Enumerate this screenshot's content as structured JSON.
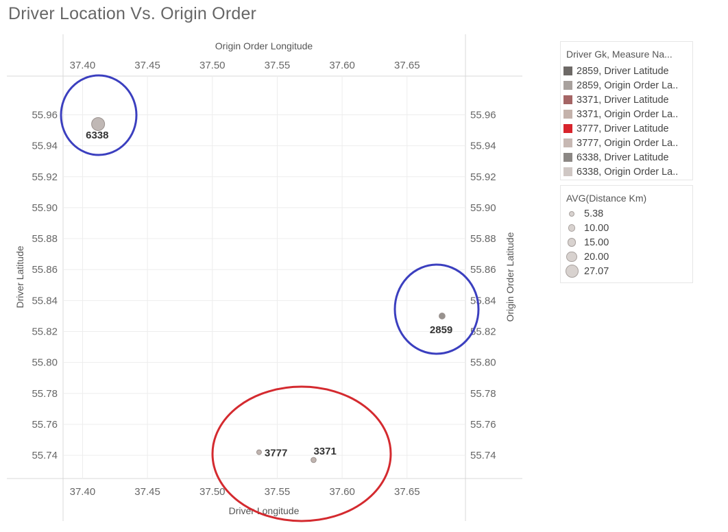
{
  "title": "Driver Location Vs. Origin Order",
  "chart_data": {
    "type": "scatter",
    "title": "Driver Location Vs. Origin Order",
    "xlabel": "Driver Longitude",
    "x2label": "Origin Order Longitude",
    "ylabel": "Driver Latitude",
    "y2label": "Origin Order Latitude",
    "xlim": [
      37.385,
      37.695
    ],
    "ylim": [
      55.725,
      55.985
    ],
    "x_ticks": [
      "37.40",
      "37.45",
      "37.50",
      "37.55",
      "37.60",
      "37.65"
    ],
    "y_ticks": [
      "55.96",
      "55.94",
      "55.92",
      "55.90",
      "55.88",
      "55.86",
      "55.84",
      "55.82",
      "55.80",
      "55.78",
      "55.76",
      "55.74"
    ],
    "grid": true,
    "points": [
      {
        "driver": "6338",
        "x": 37.412,
        "y": 55.954,
        "distance_km": 27.07,
        "color": "#b9b0ad",
        "label": "6338"
      },
      {
        "driver": "2859",
        "x": 37.677,
        "y": 55.83,
        "distance_km": 10.0,
        "color": "#8d8682",
        "label": "2859"
      },
      {
        "driver": "3777",
        "x": 37.536,
        "y": 55.742,
        "distance_km": 7.0,
        "color": "#b9aca6",
        "label": "3777"
      },
      {
        "driver": "3371",
        "x": 37.578,
        "y": 55.737,
        "distance_km": 8.0,
        "color": "#b9aca6",
        "label": "3371"
      }
    ],
    "annotations": [
      {
        "target": "6338",
        "shape": "ellipse",
        "color": "#3b3fbf"
      },
      {
        "target": "2859",
        "shape": "ellipse",
        "color": "#3b3fbf"
      },
      {
        "target": "3777, 3371",
        "shape": "ellipse",
        "color": "#d42a2f"
      }
    ]
  },
  "legend_color": {
    "title": "Driver Gk, Measure Na...",
    "items": [
      {
        "label": "2859, Driver Latitude",
        "color": "#6d6966"
      },
      {
        "label": "2859, Origin Order La..",
        "color": "#a8a19d"
      },
      {
        "label": "3371, Driver Latitude",
        "color": "#a56565"
      },
      {
        "label": "3371, Origin Order La..",
        "color": "#c4b2ab"
      },
      {
        "label": "3777, Driver Latitude",
        "color": "#d8242c"
      },
      {
        "label": "3777, Origin Order La..",
        "color": "#c7b8b3"
      },
      {
        "label": "6338, Driver Latitude",
        "color": "#8b8784"
      },
      {
        "label": "6338, Origin Order La..",
        "color": "#cfc7c4"
      }
    ]
  },
  "legend_size": {
    "title": "AVG(Distance Km)",
    "items": [
      {
        "label": "5.38",
        "value": 5.38
      },
      {
        "label": "10.00",
        "value": 10.0
      },
      {
        "label": "15.00",
        "value": 15.0
      },
      {
        "label": "20.00",
        "value": 20.0
      },
      {
        "label": "27.07",
        "value": 27.07
      }
    ]
  }
}
